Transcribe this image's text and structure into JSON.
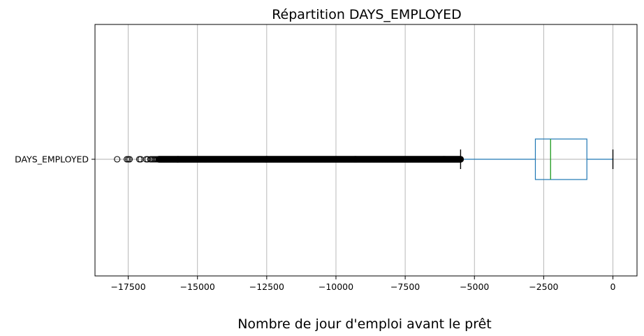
{
  "chart_data": {
    "type": "boxplot",
    "orientation": "horizontal",
    "title": "Répartition DAYS_EMPLOYED",
    "xlabel": "Nombre de jour d'emploi avant le prêt",
    "ylabel": "",
    "categories": [
      "DAYS_EMPLOYED"
    ],
    "xlim": [
      -18700,
      870
    ],
    "x_ticks": [
      -17500,
      -15000,
      -12500,
      -10000,
      -7500,
      -5000,
      -2500,
      0
    ],
    "x_tick_labels": [
      "−17500",
      "−15000",
      "−12500",
      "−10000",
      "−7500",
      "−5000",
      "−2500",
      "0"
    ],
    "grid": true,
    "box": {
      "whisker_low": -5500,
      "q1": -2800,
      "median": -2250,
      "q3": -940,
      "whisker_high": 0
    },
    "outliers_dense_range": [
      -16400,
      -5500
    ],
    "outliers_sparse": [
      -17900,
      -17550,
      -17500,
      -17450,
      -17100,
      -17050,
      -16850,
      -16800,
      -16700,
      -16650,
      -16600,
      -16550,
      -16500,
      -16450
    ],
    "colors": {
      "box": "#1f77b4",
      "median": "#2ca02c",
      "whisker_caps": "#000000",
      "outliers": "#000000",
      "grid": "#b0b0b0"
    }
  }
}
